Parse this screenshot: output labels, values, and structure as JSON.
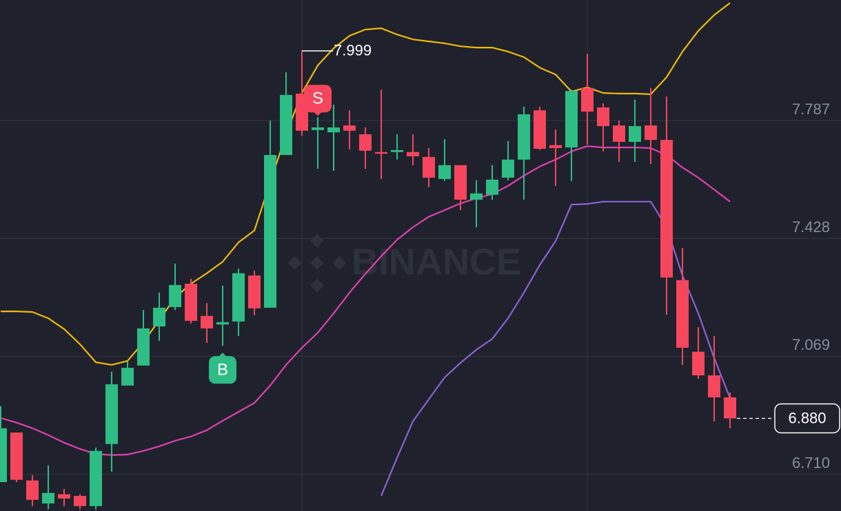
{
  "chart_data": {
    "type": "candlestick",
    "watermark": "BINANCE",
    "up_color": "#2ebd85",
    "down_color": "#f6465d",
    "ylim": [
      6.598,
      8.154
    ],
    "yticks": [
      {
        "value": 6.71,
        "label": "6.710"
      },
      7.069,
      7.428,
      7.787
    ],
    "grid": true,
    "open": [
      6.686,
      6.837,
      6.691,
      6.621,
      6.649,
      6.644,
      6.613,
      6.802,
      6.98,
      7.041,
      7.16,
      7.219,
      7.29,
      7.192,
      7.166,
      7.175,
      7.315,
      7.217,
      7.682,
      7.869,
      7.758,
      7.751,
      7.772,
      7.745,
      7.691,
      7.691,
      7.691,
      7.676,
      7.609,
      7.651,
      7.546,
      7.561,
      7.613,
      7.668,
      7.818,
      7.712,
      7.705,
      7.886,
      7.827,
      7.772,
      7.722,
      7.772,
      7.728,
      7.301,
      7.083,
      7.011,
      6.944
    ],
    "high": [
      6.917,
      6.837,
      6.707,
      6.737,
      6.665,
      6.649,
      6.791,
      7.022,
      7.053,
      7.21,
      7.263,
      7.351,
      7.305,
      7.231,
      7.284,
      7.336,
      7.33,
      7.787,
      7.934,
      7.999,
      7.797,
      7.835,
      7.818,
      7.766,
      7.881,
      7.745,
      7.745,
      7.703,
      7.73,
      7.651,
      7.605,
      7.651,
      7.724,
      7.829,
      7.829,
      7.76,
      7.881,
      7.99,
      7.839,
      7.787,
      7.85,
      7.886,
      7.86,
      7.399,
      7.158,
      7.131,
      6.959
    ],
    "low": [
      6.686,
      6.686,
      6.613,
      6.603,
      6.613,
      6.603,
      6.603,
      6.718,
      6.98,
      7.041,
      7.116,
      7.21,
      7.169,
      7.11,
      7.101,
      7.131,
      7.194,
      7.217,
      7.682,
      7.741,
      7.64,
      7.634,
      7.699,
      7.64,
      7.609,
      7.668,
      7.651,
      7.584,
      7.603,
      7.514,
      7.462,
      7.546,
      7.605,
      7.546,
      7.697,
      7.588,
      7.603,
      7.714,
      7.693,
      7.661,
      7.661,
      7.655,
      7.196,
      7.043,
      7.001,
      6.871,
      6.85
    ],
    "close": [
      6.85,
      6.693,
      6.632,
      6.653,
      6.636,
      6.613,
      6.781,
      6.984,
      7.034,
      7.154,
      7.217,
      7.286,
      7.177,
      7.154,
      7.173,
      7.322,
      7.215,
      7.682,
      7.865,
      7.756,
      7.766,
      7.766,
      7.756,
      7.695,
      7.686,
      7.697,
      7.678,
      7.613,
      7.651,
      7.546,
      7.565,
      7.607,
      7.668,
      7.806,
      7.701,
      7.703,
      7.877,
      7.814,
      7.77,
      7.722,
      7.77,
      7.728,
      7.309,
      7.095,
      7.011,
      6.944,
      6.88
    ],
    "lines": [
      {
        "color": "#f0b90b",
        "values": [
          7.206,
          7.206,
          7.204,
          7.185,
          7.152,
          7.106,
          7.051,
          7.043,
          7.055,
          7.112,
          7.179,
          7.248,
          7.29,
          7.322,
          7.357,
          7.416,
          7.452,
          7.598,
          7.745,
          7.871,
          7.955,
          8.007,
          8.045,
          8.064,
          8.068,
          8.049,
          8.034,
          8.028,
          8.022,
          8.013,
          8.009,
          8.009,
          7.997,
          7.98,
          7.948,
          7.927,
          7.875,
          7.888,
          7.871,
          7.869,
          7.869,
          7.867,
          7.919,
          7.997,
          8.06,
          8.108,
          8.145
        ]
      },
      {
        "color": "#e040b0",
        "values": [
          6.881,
          6.867,
          6.85,
          6.829,
          6.806,
          6.787,
          6.772,
          6.768,
          6.77,
          6.781,
          6.795,
          6.812,
          6.825,
          6.844,
          6.873,
          6.9,
          6.927,
          6.98,
          7.043,
          7.095,
          7.141,
          7.2,
          7.263,
          7.32,
          7.374,
          7.424,
          7.462,
          7.494,
          7.514,
          7.535,
          7.55,
          7.563,
          7.588,
          7.619,
          7.647,
          7.668,
          7.693,
          7.709,
          7.705,
          7.705,
          7.705,
          7.703,
          7.682,
          7.644,
          7.613,
          7.577,
          7.54
        ]
      },
      {
        "color": "#8e5fd6",
        "values": [
          null,
          null,
          null,
          null,
          null,
          null,
          null,
          null,
          null,
          null,
          null,
          null,
          null,
          null,
          null,
          null,
          null,
          null,
          null,
          null,
          null,
          null,
          null,
          null,
          6.644,
          6.76,
          6.871,
          6.938,
          7.005,
          7.049,
          7.089,
          7.122,
          7.185,
          7.263,
          7.347,
          7.42,
          7.531,
          7.533,
          7.54,
          7.54,
          7.54,
          7.54,
          7.462,
          7.315,
          7.2,
          7.064,
          6.942
        ]
      }
    ],
    "high_label": {
      "candle": 19,
      "value": 7.999,
      "label": "7.999"
    },
    "last_price": {
      "value": 6.88,
      "label": "6.880"
    },
    "signals": [
      {
        "label": "B",
        "candle": 14,
        "side": "buy"
      },
      {
        "label": "S",
        "candle": 20,
        "side": "sell"
      }
    ]
  }
}
